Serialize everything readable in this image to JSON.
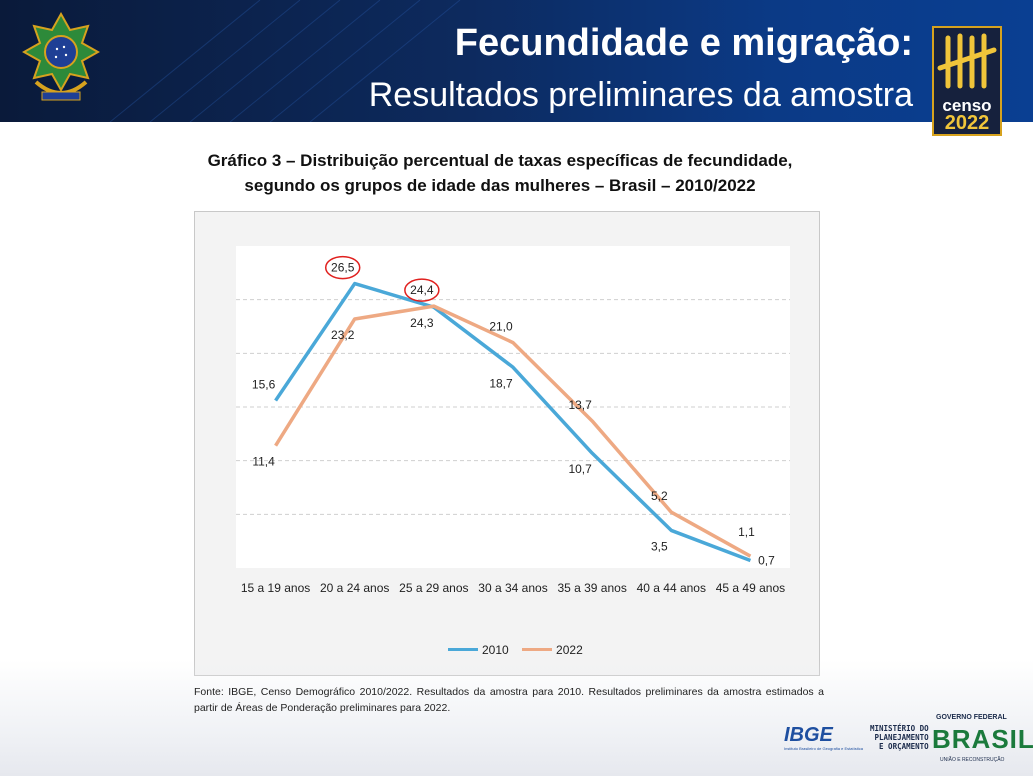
{
  "header": {
    "title": "Fecundidade e migração:",
    "subtitle": "Resultados preliminares da amostra",
    "logo_text": "censo",
    "logo_year": "2022"
  },
  "chart_title_line1": "Gráfico 3 – Distribuição percentual de taxas específicas de fecundidade,",
  "chart_title_line2": "segundo os grupos de idade das mulheres – Brasil – 2010/2022",
  "chart_data": {
    "type": "line",
    "categories": [
      "15 a 19 anos",
      "20 a 24 anos",
      "25 a 29 anos",
      "30 a 34 anos",
      "35 a 39 anos",
      "40 a 44 anos",
      "45 a 49 anos"
    ],
    "series": [
      {
        "name": "2010",
        "values": [
          15.6,
          26.5,
          24.3,
          18.7,
          10.7,
          3.5,
          0.7
        ],
        "labels": [
          "15,6",
          "26,5",
          "24,3",
          "18,7",
          "10,7",
          "3,5",
          "0,7"
        ],
        "color": "#4aa8d8"
      },
      {
        "name": "2022",
        "values": [
          11.4,
          23.2,
          24.4,
          21.0,
          13.7,
          5.2,
          1.1
        ],
        "labels": [
          "11,4",
          "23,2",
          "24,4",
          "21,0",
          "13,7",
          "5,2",
          "1,1"
        ],
        "color": "#eea983"
      }
    ],
    "highlighted": [
      "26,5",
      "24,4"
    ],
    "highlight_color": "#e0201e",
    "ylim": [
      0,
      30
    ],
    "grid": "horizontal dashed",
    "legend": "bottom"
  },
  "source": "Fonte: IBGE, Censo Demográfico 2010/2022. Resultados da amostra para 2010. Resultados preliminares da amostra estimados a partir de Áreas de Ponderação preliminares para 2022.",
  "footer": {
    "ibge": "IBGE",
    "ibge_sub": "Instituto Brasileiro de Geografia e Estatística",
    "ministerio_1": "MINISTÉRIO DO",
    "ministerio_2": "PLANEJAMENTO",
    "ministerio_3": "E ORÇAMENTO",
    "gov": "GOVERNO FEDERAL",
    "brasil": "BRASIL",
    "uniao": "UNIÃO E RECONSTRUÇÃO"
  },
  "colors": {
    "header_dark": "#0a1a3a",
    "header_blue": "#0a3f92",
    "gold": "#d6a21e"
  }
}
